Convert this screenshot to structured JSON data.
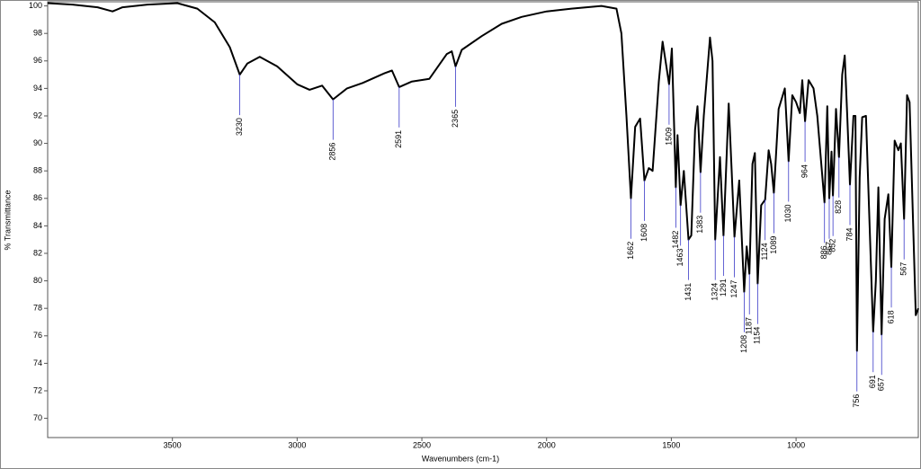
{
  "chart_data": {
    "type": "line",
    "y_label": "% Transmittance",
    "x_label": "Wavenumbers (cm-1)",
    "xlim": [
      4000,
      510
    ],
    "ylim": [
      68.6,
      100.3
    ],
    "xticks": [
      3500,
      3000,
      2500,
      2000,
      1500,
      1000
    ],
    "yticks": [
      70,
      72,
      74,
      76,
      78,
      80,
      82,
      84,
      86,
      88,
      90,
      92,
      94,
      96,
      98,
      100
    ],
    "color": "#000000",
    "peak_color": "#3a3ac8",
    "x": [
      4000,
      3900,
      3800,
      3740,
      3700,
      3600,
      3480,
      3400,
      3330,
      3270,
      3230,
      3200,
      3150,
      3080,
      3000,
      2950,
      2900,
      2856,
      2800,
      2737,
      2650,
      2620,
      2591,
      2540,
      2470,
      2400,
      2380,
      2365,
      2340,
      2260,
      2180,
      2100,
      2000,
      1900,
      1780,
      1720,
      1700,
      1680,
      1662,
      1645,
      1625,
      1608,
      1590,
      1575,
      1550,
      1535,
      1520,
      1509,
      1498,
      1490,
      1482,
      1475,
      1463,
      1450,
      1431,
      1420,
      1405,
      1395,
      1383,
      1370,
      1345,
      1335,
      1324,
      1305,
      1291,
      1270,
      1258,
      1247,
      1228,
      1208,
      1198,
      1187,
      1175,
      1165,
      1154,
      1140,
      1124,
      1110,
      1100,
      1089,
      1070,
      1045,
      1030,
      1015,
      1000,
      985,
      975,
      964,
      950,
      930,
      915,
      886,
      875,
      867,
      858,
      852,
      840,
      828,
      815,
      805,
      795,
      784,
      770,
      762,
      756,
      745,
      735,
      720,
      691,
      680,
      670,
      657,
      645,
      630,
      618,
      605,
      590,
      580,
      567,
      555,
      545,
      520,
      510
    ],
    "values": [
      100.2,
      100.1,
      99.9,
      99.6,
      99.9,
      100.1,
      100.2,
      99.8,
      98.8,
      97.0,
      95.0,
      95.8,
      96.3,
      95.6,
      94.3,
      93.9,
      94.2,
      93.2,
      94.0,
      94.4,
      95.1,
      95.3,
      94.1,
      94.5,
      94.7,
      96.5,
      96.7,
      95.6,
      96.8,
      97.8,
      98.7,
      99.2,
      99.6,
      99.8,
      100.0,
      99.8,
      98.0,
      92.0,
      86.0,
      91.2,
      91.8,
      87.3,
      88.2,
      88.0,
      94.5,
      97.4,
      95.6,
      94.3,
      96.9,
      92.0,
      86.8,
      90.6,
      85.5,
      88.0,
      83.0,
      83.3,
      91.0,
      92.7,
      87.9,
      92.0,
      97.7,
      96.0,
      83.0,
      89.0,
      83.3,
      92.9,
      88.0,
      83.2,
      87.3,
      79.2,
      82.5,
      80.5,
      88.5,
      89.3,
      79.8,
      85.5,
      85.9,
      89.5,
      88.5,
      86.4,
      92.5,
      94.0,
      88.7,
      93.5,
      93.0,
      92.2,
      94.6,
      91.6,
      94.6,
      94.0,
      92.0,
      85.7,
      92.7,
      86.0,
      89.4,
      86.2,
      92.5,
      89.0,
      95.0,
      96.4,
      92.0,
      87.0,
      92.0,
      92.0,
      74.9,
      87.5,
      91.9,
      92.0,
      76.3,
      80.0,
      86.8,
      76.1,
      84.5,
      86.3,
      81.0,
      90.2,
      89.5,
      90.0,
      84.5,
      93.5,
      93.0,
      77.5,
      78.0
    ],
    "peaks": [
      {
        "x": 3230,
        "y": 95.0
      },
      {
        "x": 2856,
        "y": 93.2
      },
      {
        "x": 2591,
        "y": 94.1
      },
      {
        "x": 2365,
        "y": 95.6
      },
      {
        "x": 1662,
        "y": 86.0
      },
      {
        "x": 1608,
        "y": 87.3
      },
      {
        "x": 1509,
        "y": 94.3
      },
      {
        "x": 1482,
        "y": 86.8
      },
      {
        "x": 1463,
        "y": 85.5
      },
      {
        "x": 1431,
        "y": 83.0
      },
      {
        "x": 1383,
        "y": 87.9
      },
      {
        "x": 1324,
        "y": 83.0
      },
      {
        "x": 1291,
        "y": 83.3
      },
      {
        "x": 1247,
        "y": 83.2
      },
      {
        "x": 1208,
        "y": 79.2
      },
      {
        "x": 1187,
        "y": 80.5
      },
      {
        "x": 1154,
        "y": 79.8
      },
      {
        "x": 1124,
        "y": 85.9
      },
      {
        "x": 1089,
        "y": 86.4
      },
      {
        "x": 1030,
        "y": 88.7
      },
      {
        "x": 964,
        "y": 91.6
      },
      {
        "x": 886,
        "y": 85.7
      },
      {
        "x": 867,
        "y": 86.0
      },
      {
        "x": 852,
        "y": 86.2
      },
      {
        "x": 828,
        "y": 89.0
      },
      {
        "x": 784,
        "y": 87.0
      },
      {
        "x": 756,
        "y": 74.9
      },
      {
        "x": 691,
        "y": 76.3
      },
      {
        "x": 657,
        "y": 76.1
      },
      {
        "x": 618,
        "y": 81.0
      },
      {
        "x": 567,
        "y": 84.5
      }
    ]
  }
}
